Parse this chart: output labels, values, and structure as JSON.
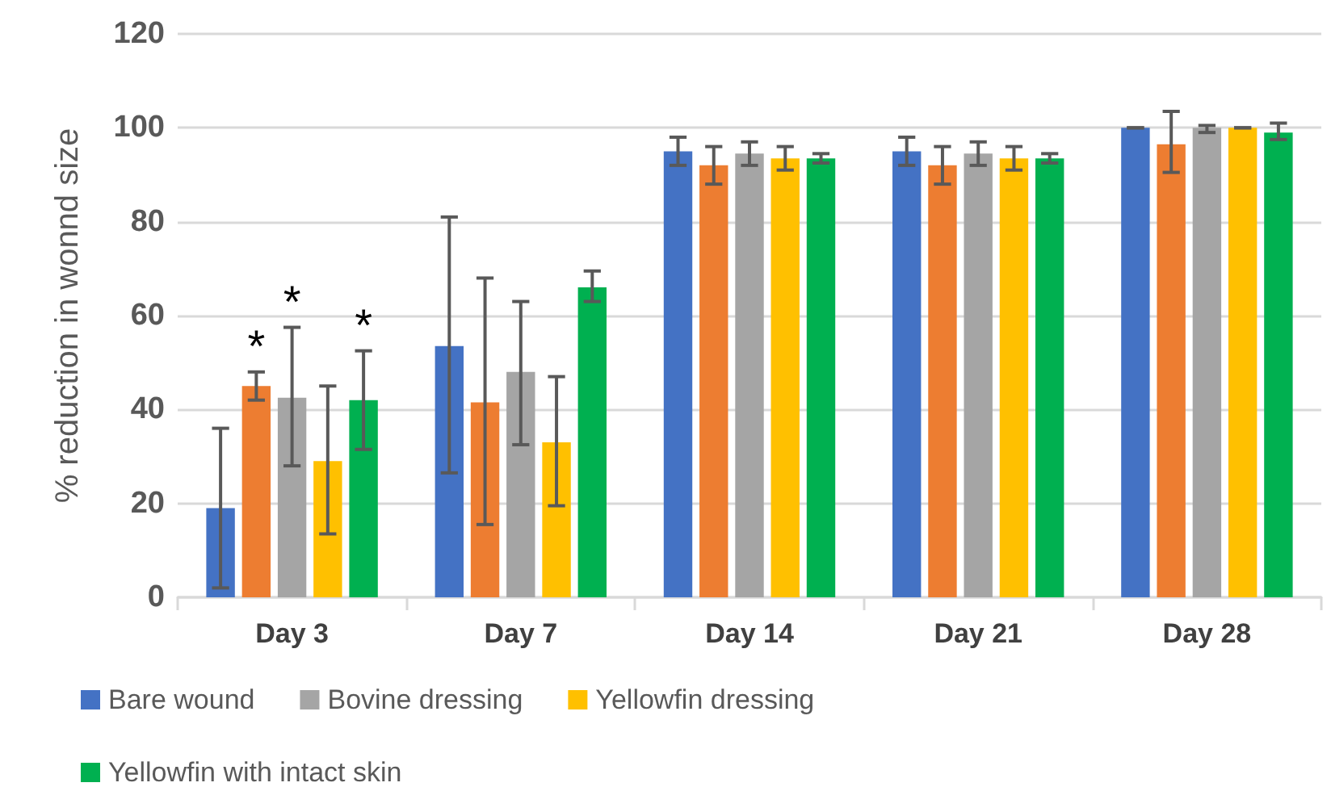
{
  "chart_data": {
    "type": "bar",
    "ylabel": "% reduction in wonnd size",
    "categories": [
      "Day 3",
      "Day 7",
      "Day 14",
      "Day 21",
      "Day 28"
    ],
    "ylim": [
      0,
      120
    ],
    "yticks": [
      0,
      20,
      40,
      60,
      80,
      100,
      120
    ],
    "grid": "y",
    "legend": "bottom",
    "series": [
      {
        "name": "Bare wound",
        "color": "#4472c4",
        "values": [
          19,
          53.5,
          95,
          95,
          100
        ],
        "errors": [
          [
            2,
            36
          ],
          [
            26.5,
            81
          ],
          [
            92,
            98
          ],
          [
            92,
            98
          ],
          0
        ]
      },
      {
        "color": "#ed7d31",
        "values": [
          45,
          41.5,
          92,
          92,
          96.5
        ],
        "errors": [
          [
            42,
            48
          ],
          [
            15.5,
            68
          ],
          [
            88,
            96
          ],
          [
            88,
            96
          ],
          [
            90.5,
            103.5
          ]
        ],
        "value_labels": [
          "*",
          null,
          null,
          null,
          null
        ]
      },
      {
        "name": "Bovine dressing",
        "color": "#a5a5a5",
        "values": [
          42.5,
          48,
          94.5,
          94.5,
          100
        ],
        "errors": [
          [
            28,
            57.5
          ],
          [
            32.5,
            63
          ],
          [
            92,
            97
          ],
          [
            92,
            97
          ],
          [
            99,
            100.5
          ]
        ],
        "value_labels": [
          "*",
          null,
          null,
          null,
          null
        ]
      },
      {
        "name": "Yellowfin dressing",
        "color": "#ffc000",
        "values": [
          29,
          33,
          93.5,
          93.5,
          100
        ],
        "errors": [
          [
            13.5,
            45
          ],
          [
            19.5,
            47
          ],
          [
            91,
            96
          ],
          [
            91,
            96
          ],
          0
        ]
      },
      {
        "name": "Yellowfin with intact skin",
        "color": "#00b050",
        "values": [
          42,
          66,
          93.5,
          93.5,
          99
        ],
        "errors": [
          [
            31.5,
            52.5
          ],
          [
            63,
            69.5
          ],
          [
            92.5,
            94.5
          ],
          [
            92.5,
            94.5
          ],
          [
            97.5,
            101
          ]
        ],
        "value_labels": [
          "*",
          null,
          null,
          null,
          null
        ]
      }
    ]
  }
}
